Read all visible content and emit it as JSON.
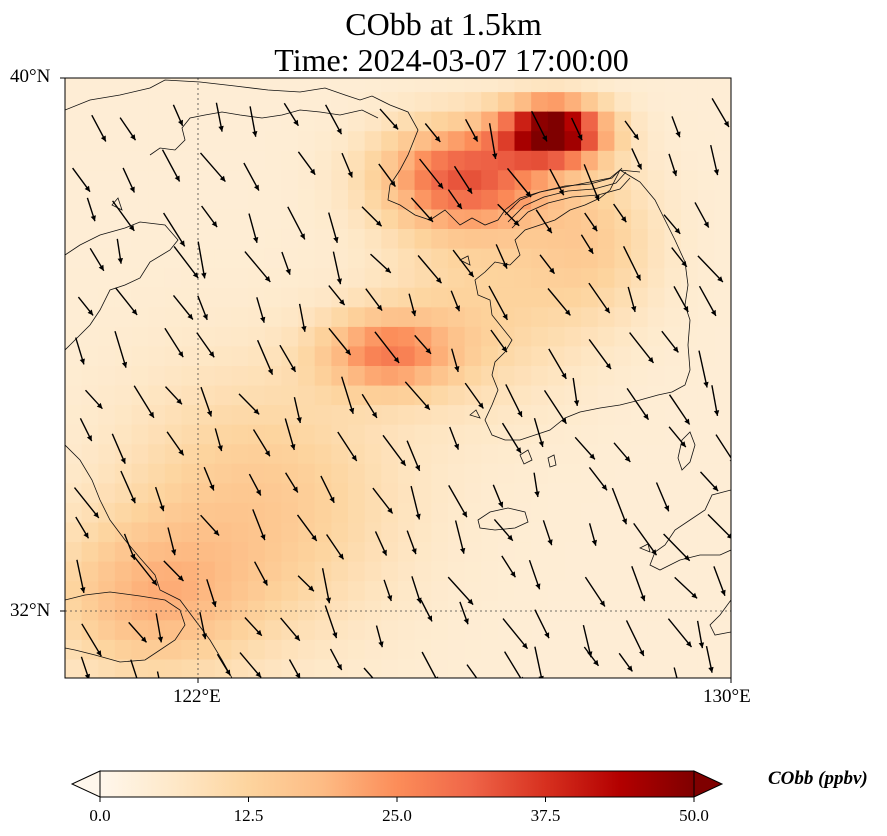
{
  "title": {
    "line1": "CObb at 1.5km",
    "line2": "Time: 2024-03-07 17:00:00"
  },
  "map": {
    "lon_range": [
      118.0,
      130.0
    ],
    "lat_range": [
      30.8,
      40.0
    ],
    "lat_ticks": [
      {
        "value": 40,
        "label": "40°N"
      },
      {
        "value": 32,
        "label": "32°N"
      }
    ],
    "lon_ticks": [
      {
        "value": 122,
        "label": "122°E"
      },
      {
        "value": 130,
        "label": "130°E"
      }
    ],
    "gridlines": {
      "lon": [
        122
      ],
      "lat": [
        32
      ]
    }
  },
  "colorbar": {
    "label": "CObb (ppbv)",
    "min": 0.0,
    "max": 50.0,
    "ticks": [
      "0.0",
      "12.5",
      "25.0",
      "37.5",
      "50.0"
    ],
    "colormap": [
      "#fff7ec",
      "#fee8c8",
      "#fdd49e",
      "#fdbb84",
      "#fc8d59",
      "#ef6548",
      "#d7301f",
      "#b30000",
      "#7f0000"
    ],
    "extend": "both"
  },
  "field": {
    "description_units": "ppbv",
    "hotspots": [
      {
        "lon": 126.8,
        "lat": 39.2,
        "value": 48,
        "sx": 0.9,
        "sy": 0.45
      },
      {
        "lon": 125.2,
        "lat": 38.5,
        "value": 28,
        "sx": 1.5,
        "sy": 0.8
      },
      {
        "lon": 123.8,
        "lat": 35.8,
        "value": 20,
        "sx": 1.2,
        "sy": 0.6
      },
      {
        "lon": 121.5,
        "lat": 33.5,
        "value": 11,
        "sx": 2.5,
        "sy": 2.0
      },
      {
        "lon": 119.5,
        "lat": 32.0,
        "value": 13,
        "sx": 1.8,
        "sy": 1.2
      },
      {
        "lon": 125.5,
        "lat": 36.5,
        "value": 8,
        "sx": 1.8,
        "sy": 1.5
      },
      {
        "lon": 127.5,
        "lat": 37.5,
        "value": 9,
        "sx": 1.2,
        "sy": 1.2
      }
    ],
    "base_value": 4
  },
  "wind": {
    "u": 0.55,
    "v": -1.0
  }
}
